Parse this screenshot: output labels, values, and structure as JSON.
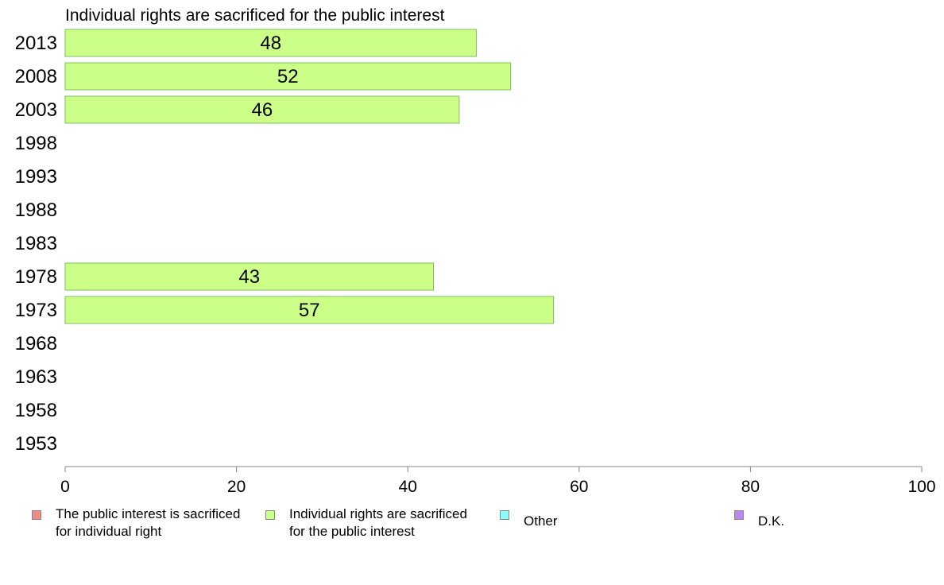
{
  "chart_data": {
    "type": "bar",
    "orientation": "horizontal",
    "title": "Individual rights are sacrificed for the public interest",
    "categories": [
      "2013",
      "2008",
      "2003",
      "1998",
      "1993",
      "1988",
      "1983",
      "1978",
      "1973",
      "1968",
      "1963",
      "1958",
      "1953"
    ],
    "series": [
      {
        "name": "Individual rights are sacrificed for the public interest",
        "color": "#ccff88",
        "values": [
          48,
          52,
          46,
          null,
          null,
          null,
          null,
          43,
          57,
          null,
          null,
          null,
          null
        ],
        "value_labels": [
          "48",
          "52",
          "46",
          "",
          "",
          "",
          "",
          "43",
          "57",
          "",
          "",
          "",
          ""
        ]
      }
    ],
    "xlim": [
      0,
      100
    ],
    "xticks": [
      "0",
      "20",
      "40",
      "60",
      "80",
      "100"
    ],
    "grid": false,
    "legend_position": "bottom",
    "legend": [
      {
        "label": "The public interest is sacrificed\nfor individual right",
        "color": "#f08a8a"
      },
      {
        "label": "Individual rights are sacrificed\nfor the public interest",
        "color": "#ccff88"
      },
      {
        "label": "Other",
        "color": "#88ffff"
      },
      {
        "label": "D.K.",
        "color": "#bb88ee"
      }
    ]
  }
}
